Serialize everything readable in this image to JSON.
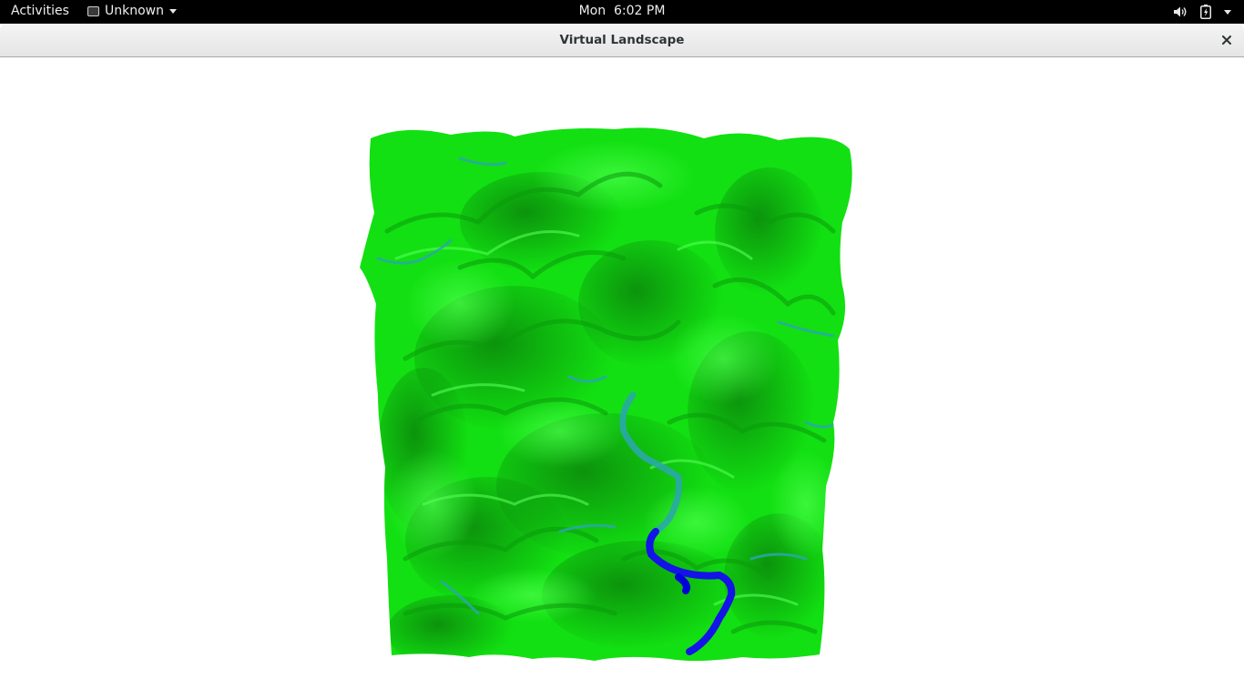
{
  "topbar": {
    "activities_label": "Activities",
    "app_menu_label": "Unknown",
    "clock": "Mon  6:02 PM",
    "icons": [
      "volume-icon",
      "battery-icon",
      "system-menu-chevron-icon"
    ]
  },
  "window": {
    "title": "Virtual Landscape",
    "close_label": "×"
  },
  "colors": {
    "topbar_bg": "#000000",
    "terrain_green": "#10e010",
    "terrain_dark_green": "#0a8a0a",
    "river_blue": "#1010e0",
    "stream_cyan": "#2aa8a8"
  }
}
